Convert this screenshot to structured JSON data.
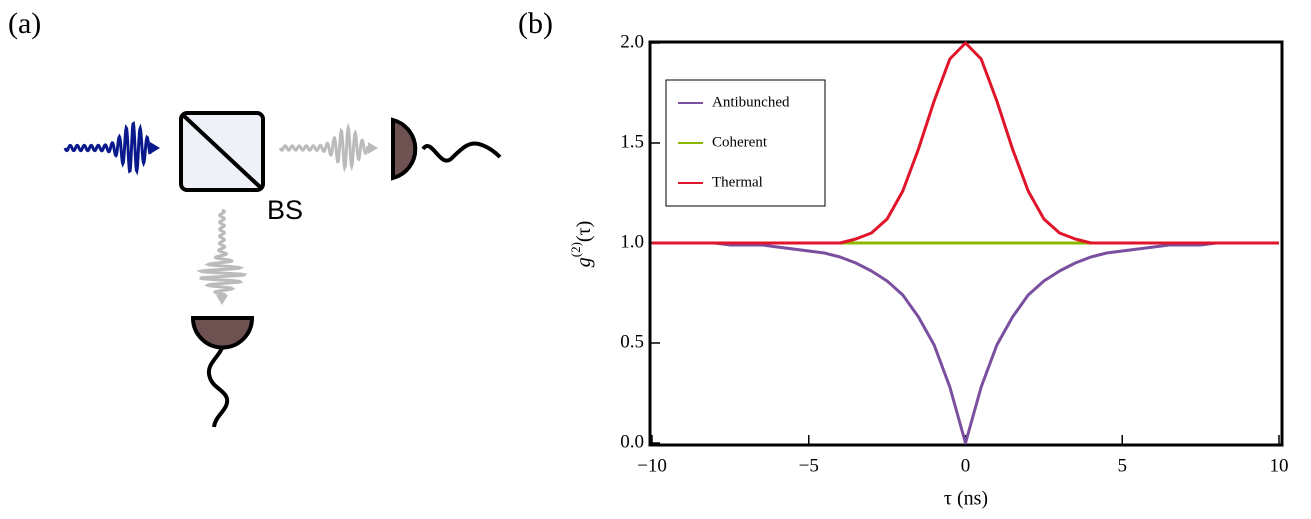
{
  "panel_a": {
    "label": "(a)",
    "splitter_label": "BS"
  },
  "panel_b": {
    "label": "(b)"
  },
  "chart_data": {
    "type": "line",
    "xlabel": "τ (ns)",
    "ylabel": {
      "base": "g",
      "sup": "(2)",
      "rest": "(τ)"
    },
    "x": [
      -10,
      -9.5,
      -9,
      -8.5,
      -8,
      -7.5,
      -7,
      -6.5,
      -6,
      -5.5,
      -5,
      -4.5,
      -4,
      -3.5,
      -3,
      -2.5,
      -2,
      -1.5,
      -1,
      -0.5,
      0,
      0.5,
      1,
      1.5,
      2,
      2.5,
      3,
      3.5,
      4,
      4.5,
      5,
      5.5,
      6,
      6.5,
      7,
      7.5,
      8,
      8.5,
      9,
      9.5,
      10
    ],
    "series": [
      {
        "name": "Antibunched",
        "color": "#7b4fa0",
        "values": [
          1,
          1,
          1,
          1,
          1,
          0.99,
          0.99,
          0.99,
          0.98,
          0.97,
          0.96,
          0.95,
          0.93,
          0.9,
          0.86,
          0.81,
          0.74,
          0.63,
          0.49,
          0.28,
          0,
          0.28,
          0.49,
          0.63,
          0.74,
          0.81,
          0.86,
          0.9,
          0.93,
          0.95,
          0.96,
          0.97,
          0.98,
          0.99,
          0.99,
          0.99,
          1,
          1,
          1,
          1,
          1
        ]
      },
      {
        "name": "Coherent",
        "color": "#8db600",
        "values": [
          1,
          1,
          1,
          1,
          1,
          1,
          1,
          1,
          1,
          1,
          1,
          1,
          1,
          1,
          1,
          1,
          1,
          1,
          1,
          1,
          1,
          1,
          1,
          1,
          1,
          1,
          1,
          1,
          1,
          1,
          1,
          1,
          1,
          1,
          1,
          1,
          1,
          1,
          1,
          1,
          1
        ]
      },
      {
        "name": "Thermal",
        "color": "#e0142a",
        "values": [
          1,
          1,
          1,
          1,
          1,
          1,
          1,
          1,
          1,
          1,
          1,
          1,
          1,
          1.02,
          1.05,
          1.12,
          1.26,
          1.47,
          1.71,
          1.92,
          2,
          1.92,
          1.71,
          1.47,
          1.26,
          1.12,
          1.05,
          1.02,
          1,
          1,
          1,
          1,
          1,
          1,
          1,
          1,
          1,
          1,
          1,
          1,
          1
        ]
      }
    ],
    "xlim": [
      -10,
      10
    ],
    "xticks": [
      {
        "value": -10,
        "label": "−10"
      },
      {
        "value": -5,
        "label": "−5"
      },
      0,
      5,
      10
    ],
    "ylim": [
      0,
      2
    ],
    "yticks": [
      {
        "value": 0,
        "label": "0.0"
      },
      0.5,
      {
        "value": 1,
        "label": "1.0"
      },
      1.5,
      {
        "value": 2,
        "label": "2.0"
      }
    ],
    "legend": "upper-left"
  }
}
